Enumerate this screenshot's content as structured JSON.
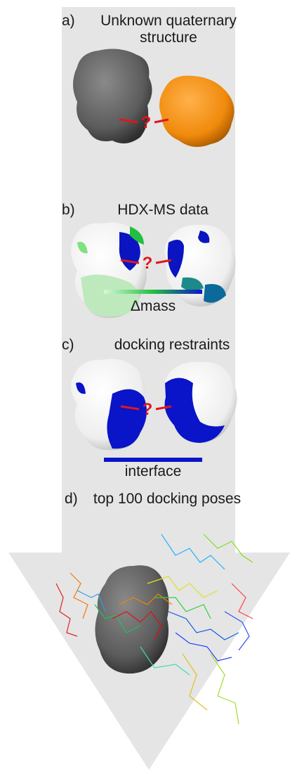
{
  "panels": [
    {
      "label": "a)",
      "title_lines": [
        "Unknown quaternary",
        "structure"
      ],
      "mark": "?"
    },
    {
      "label": "b)",
      "title": "HDX-MS data",
      "mark": "?",
      "scale_label": "Δmass"
    },
    {
      "label": "c)",
      "title": "docking restraints",
      "mark": "?",
      "scale_label": "interface"
    },
    {
      "label": "d)",
      "title": "top 100 docking poses"
    }
  ]
}
